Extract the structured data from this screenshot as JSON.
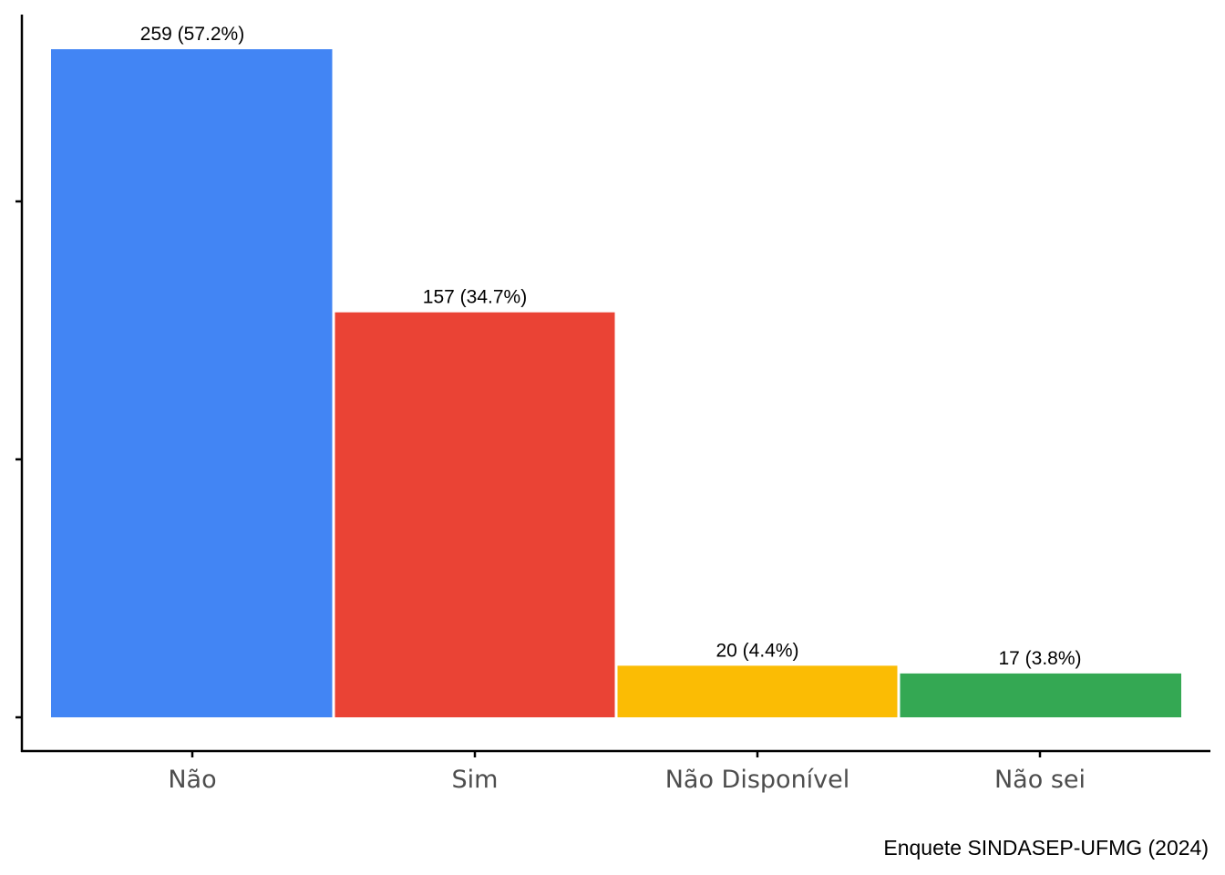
{
  "chart_data": {
    "type": "bar",
    "categories": [
      "Não",
      "Sim",
      "Não Disponível",
      "Não sei"
    ],
    "values": [
      259,
      157,
      20,
      17
    ],
    "data_labels": [
      "259 (57.2%)",
      "157 (34.7%)",
      "20 (4.4%)",
      "17 (3.8%)"
    ],
    "colors": [
      "#4285F4",
      "#EA4335",
      "#FBBC04",
      "#34A853"
    ],
    "caption": "Enquete SINDASEP-UFMG (2024)",
    "title": "",
    "xlabel": "",
    "ylabel": "",
    "ylim": [
      0,
      259
    ],
    "y_tick_values": [
      0,
      100,
      200
    ],
    "y_tick_labels_visible": false,
    "grid": false
  }
}
